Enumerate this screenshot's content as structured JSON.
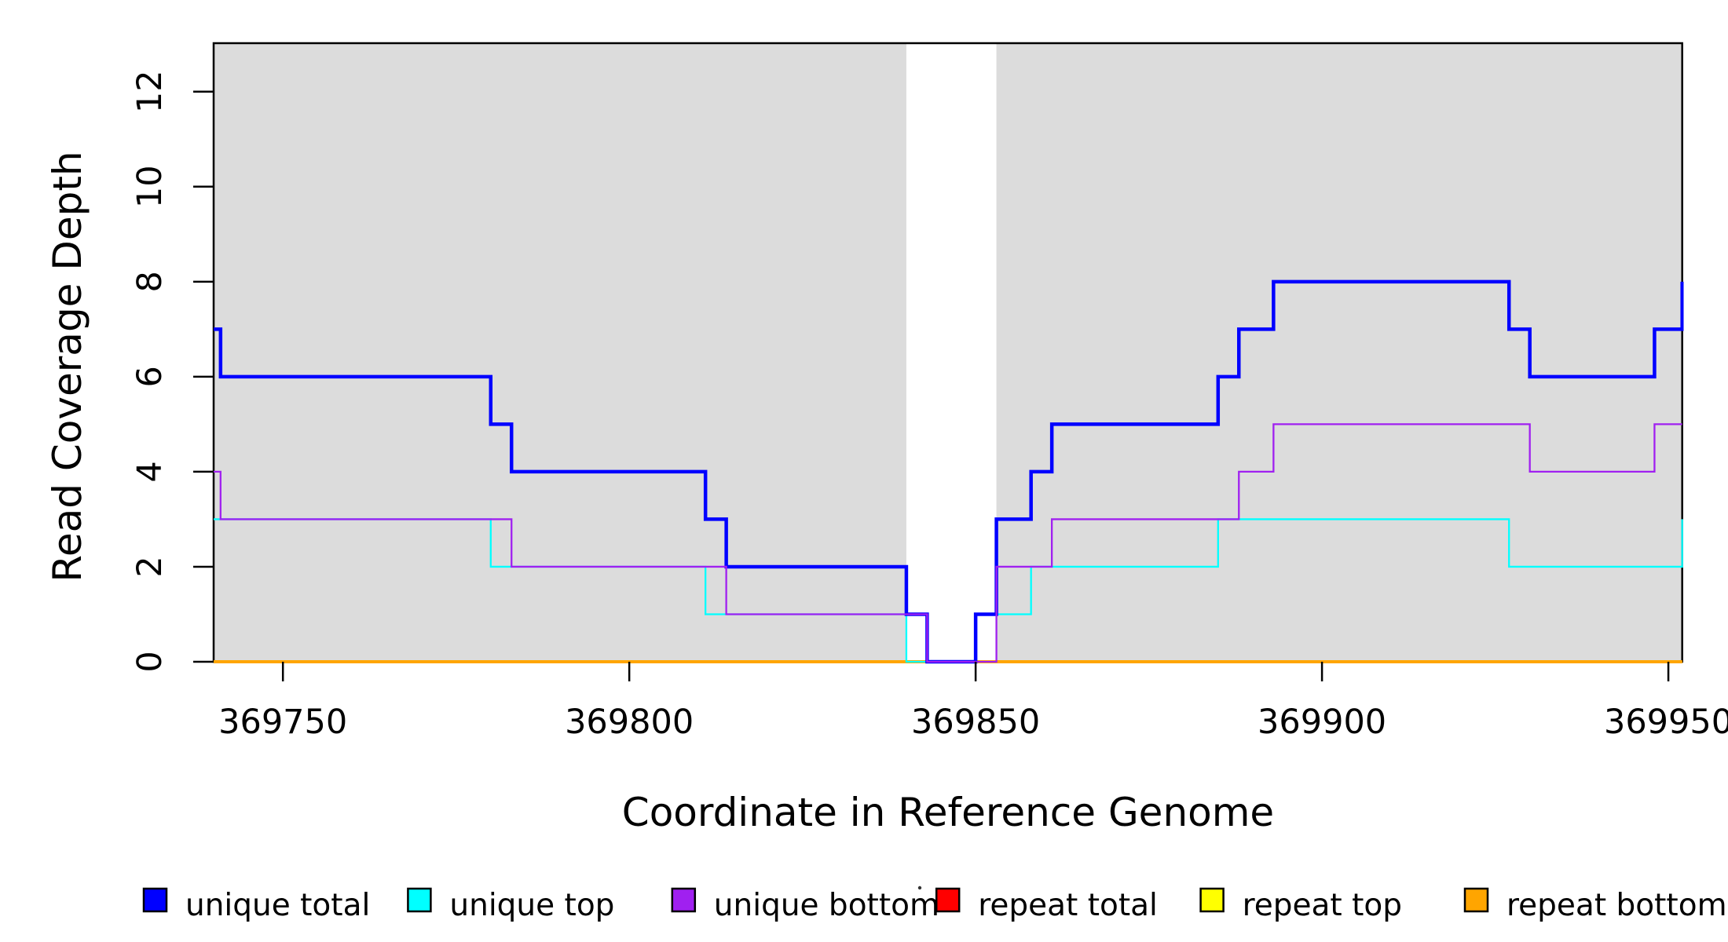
{
  "figure": {
    "background": "#FFFFFF",
    "shade_color": "#DCDCDC",
    "axis_color": "#000000",
    "xlabel": "Coordinate in Reference Genome",
    "ylabel": "Read Coverage Depth",
    "x_tick_labels": [
      "369750",
      "369800",
      "369850",
      "369900",
      "369950"
    ],
    "y_tick_labels": [
      "0",
      "2",
      "4",
      "6",
      "8",
      "10",
      "12"
    ]
  },
  "chart_data": {
    "type": "line",
    "subtype": "step-after-coverage",
    "title": "",
    "xlabel": "Coordinate in Reference Genome",
    "ylabel": "Read Coverage Depth",
    "xlim": [
      369740,
      369952
    ],
    "ylim": [
      0,
      13.02
    ],
    "x_ticks": [
      369750,
      369800,
      369850,
      369900,
      369950
    ],
    "y_ticks": [
      0,
      2,
      4,
      6,
      8,
      10,
      12
    ],
    "grid": false,
    "legend_position": "bottom",
    "shaded_x_regions": [
      [
        369740,
        369840
      ],
      [
        369853,
        369952
      ]
    ],
    "point_semantics": "each [x,depth] holds that depth until the next breakpoint x; final depth holds to xlim max",
    "series": [
      {
        "name": "unique total",
        "color": "#0000FF",
        "line_width": 4.5,
        "z": 5,
        "points": [
          [
            369740,
            7
          ],
          [
            369741,
            6
          ],
          [
            369780,
            5
          ],
          [
            369783,
            4
          ],
          [
            369811,
            3
          ],
          [
            369814,
            2
          ],
          [
            369840,
            1
          ],
          [
            369843,
            0
          ],
          [
            369850,
            1
          ],
          [
            369853,
            3
          ],
          [
            369858,
            4
          ],
          [
            369861,
            5
          ],
          [
            369885,
            6
          ],
          [
            369888,
            7
          ],
          [
            369893,
            8
          ],
          [
            369927,
            7
          ],
          [
            369930,
            6
          ],
          [
            369948,
            7
          ],
          [
            369952,
            8
          ]
        ]
      },
      {
        "name": "unique top",
        "color": "#00FFFF",
        "line_width": 2.3,
        "z": 4,
        "points": [
          [
            369740,
            3
          ],
          [
            369780,
            2
          ],
          [
            369811,
            1
          ],
          [
            369840,
            0
          ],
          [
            369850,
            1
          ],
          [
            369858,
            2
          ],
          [
            369885,
            3
          ],
          [
            369927,
            2
          ],
          [
            369952,
            3
          ]
        ]
      },
      {
        "name": "unique bottom",
        "color": "#A020F0",
        "line_width": 2.3,
        "z": 6,
        "points": [
          [
            369740,
            4
          ],
          [
            369741,
            3
          ],
          [
            369783,
            2
          ],
          [
            369814,
            1
          ],
          [
            369843,
            0
          ],
          [
            369853,
            2
          ],
          [
            369861,
            3
          ],
          [
            369888,
            4
          ],
          [
            369893,
            5
          ],
          [
            369930,
            4
          ],
          [
            369948,
            5
          ]
        ]
      },
      {
        "name": "repeat total",
        "color": "#FF0000",
        "line_width": 2.5,
        "z": 1,
        "points": [
          [
            369740,
            0
          ]
        ]
      },
      {
        "name": "repeat top",
        "color": "#FFFF00",
        "line_width": 2.5,
        "z": 2,
        "points": [
          [
            369740,
            0
          ]
        ]
      },
      {
        "name": "repeat bottom",
        "color": "#FFA500",
        "line_width": 4.0,
        "z": 3,
        "points": [
          [
            369740,
            0
          ]
        ]
      }
    ]
  },
  "legend": {
    "items": [
      {
        "label": "unique total",
        "color": "#0000FF"
      },
      {
        "label": "unique top",
        "color": "#00FFFF"
      },
      {
        "label": "unique bottom",
        "color": "#A020F0"
      },
      {
        "label": "repeat total",
        "color": "#FF0000"
      },
      {
        "label": "repeat top",
        "color": "#FFFF00"
      },
      {
        "label": "repeat bottom",
        "color": "#FFA500"
      }
    ]
  }
}
